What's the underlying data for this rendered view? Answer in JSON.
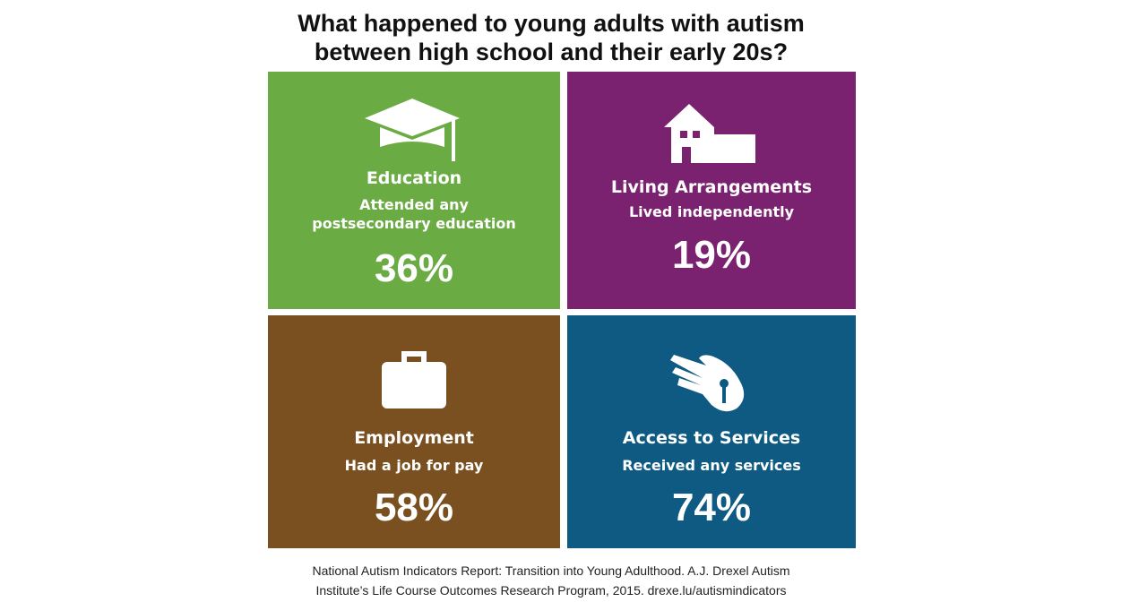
{
  "title_lines": [
    "What happened to young adults with autism",
    "between high school and their early 20s?"
  ],
  "panels": [
    {
      "heading": "Education",
      "description_lines": [
        "Attended any",
        "postsecondary education"
      ],
      "percent": "36%"
    },
    {
      "heading": "Living Arrangements",
      "description_lines": [
        "Lived independently"
      ],
      "percent": "19%"
    },
    {
      "heading": "Employment",
      "description_lines": [
        "Had a job for pay"
      ],
      "percent": "58%"
    },
    {
      "heading": "Access to Services",
      "description_lines": [
        "Received any services"
      ],
      "percent": "74%"
    }
  ],
  "source_lines": [
    "National Autism Indicators Report: Transition into Young Adulthood. A.J. Drexel Autism",
    "Institute’s Life Course Outcomes Research Program, 2015. drexe.lu/autismindicators"
  ]
}
